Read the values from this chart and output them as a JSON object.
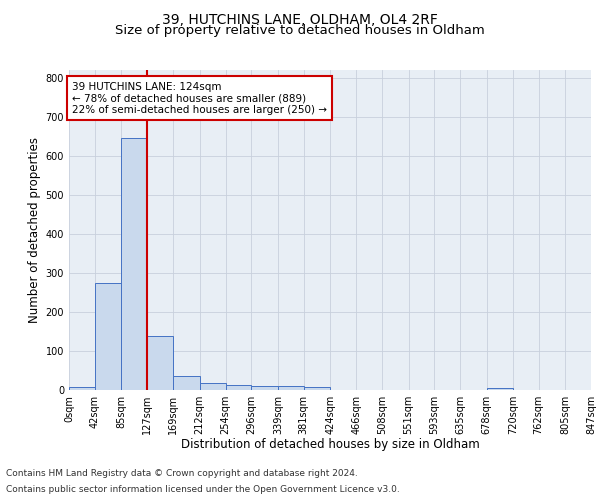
{
  "title": "39, HUTCHINS LANE, OLDHAM, OL4 2RF",
  "subtitle": "Size of property relative to detached houses in Oldham",
  "xlabel": "Distribution of detached houses by size in Oldham",
  "ylabel": "Number of detached properties",
  "annotation_line1": "39 HUTCHINS LANE: 124sqm",
  "annotation_line2": "← 78% of detached houses are smaller (889)",
  "annotation_line3": "22% of semi-detached houses are larger (250) →",
  "footer1": "Contains HM Land Registry data © Crown copyright and database right 2024.",
  "footer2": "Contains public sector information licensed under the Open Government Licence v3.0.",
  "bin_edges": [
    0,
    42,
    85,
    127,
    169,
    212,
    254,
    296,
    339,
    381,
    424,
    466,
    508,
    551,
    593,
    635,
    678,
    720,
    762,
    805,
    847
  ],
  "bar_heights": [
    8,
    275,
    645,
    138,
    35,
    18,
    12,
    10,
    10,
    8,
    0,
    0,
    0,
    0,
    0,
    0,
    5,
    0,
    0,
    0
  ],
  "bar_color": "#c9d9ed",
  "bar_edge_color": "#4472c4",
  "vline_x": 127,
  "vline_color": "#cc0000",
  "ylim": [
    0,
    820
  ],
  "yticks": [
    0,
    100,
    200,
    300,
    400,
    500,
    600,
    700,
    800
  ],
  "grid_color": "#c8d0dc",
  "bg_color": "#e8eef5",
  "annotation_box_color": "#cc0000",
  "title_fontsize": 10,
  "subtitle_fontsize": 9.5,
  "axis_label_fontsize": 8.5,
  "tick_fontsize": 7,
  "footer_fontsize": 6.5
}
